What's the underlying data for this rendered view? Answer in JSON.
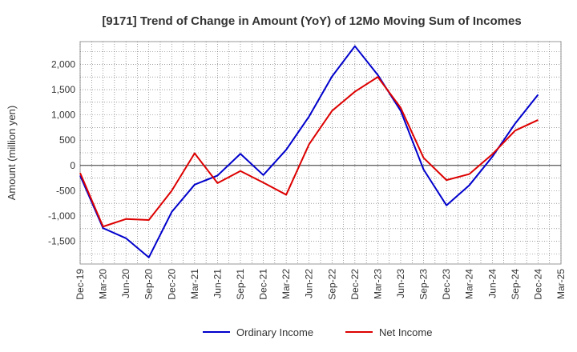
{
  "chart_data": {
    "type": "line",
    "title": "[9171]  Trend of Change in Amount (YoY) of 12Mo Moving Sum of Incomes",
    "ylabel": "Amount (million yen)",
    "xlabel": "",
    "ylim": [
      -1950,
      2450
    ],
    "yticks": [
      2000,
      1500,
      1000,
      500,
      0,
      -500,
      -1000,
      -1500
    ],
    "ytick_labels": [
      "2,000",
      "1,500",
      "1,000",
      "500",
      "0",
      "-500",
      "-1,000",
      "-1,500"
    ],
    "categories": [
      "Dec-19",
      "Mar-20",
      "Jun-20",
      "Sep-20",
      "Dec-20",
      "Mar-21",
      "Jun-21",
      "Sep-21",
      "Dec-21",
      "Mar-22",
      "Jun-22",
      "Sep-22",
      "Dec-22",
      "Mar-23",
      "Jun-23",
      "Sep-23",
      "Dec-23",
      "Mar-24",
      "Jun-24",
      "Sep-24",
      "Dec-24",
      "Mar-25"
    ],
    "grid": true,
    "legend_position": "bottom",
    "series": [
      {
        "name": "Ordinary Income",
        "color": "#0000cc",
        "values": [
          -200,
          -1240,
          -1440,
          -1820,
          -920,
          -380,
          -200,
          230,
          -190,
          310,
          970,
          1760,
          2360,
          1790,
          1080,
          -80,
          -790,
          -390,
          170,
          830,
          1400,
          null
        ]
      },
      {
        "name": "Net Income",
        "color": "#dd0000",
        "values": [
          -150,
          -1210,
          -1060,
          -1080,
          -500,
          240,
          -350,
          -110,
          -340,
          -580,
          420,
          1080,
          1460,
          1750,
          1140,
          150,
          -290,
          -170,
          220,
          690,
          900,
          null
        ]
      }
    ]
  }
}
